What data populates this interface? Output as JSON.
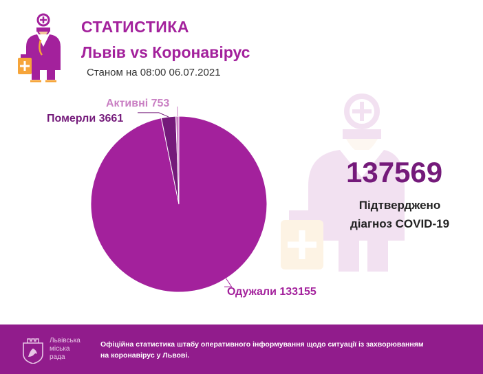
{
  "header": {
    "title": "СТАТИСТИКА",
    "subtitle": "Львів vs Коронавірус",
    "date": "Станом на 08:00 06.07.2021"
  },
  "summary": {
    "total": "137569",
    "label_line1": "Підтверджено",
    "label_line2": "діагноз COVID-19"
  },
  "chart_data": {
    "type": "pie",
    "title": "",
    "slices": [
      {
        "label": "Одужали 133155",
        "name": "Одужали",
        "value": 133155,
        "color": "#a3219c"
      },
      {
        "label": "Померли 3661",
        "name": "Померли",
        "value": 3661,
        "color": "#741a7a"
      },
      {
        "label": "Активні 753",
        "name": "Активні",
        "value": 753,
        "color": "#c97fc3"
      }
    ],
    "legend": "none"
  },
  "footer": {
    "org_line1": "Львівська",
    "org_line2": "міська",
    "org_line3": "рада",
    "text": "Офіційна статистика штабу оперативного інформування щодо ситуації із захворюванням на коронавірус у Львові."
  },
  "colors": {
    "brand": "#a3219c",
    "dark": "#741a7a",
    "light": "#c97fc3",
    "footer_bg": "#911c8c"
  }
}
